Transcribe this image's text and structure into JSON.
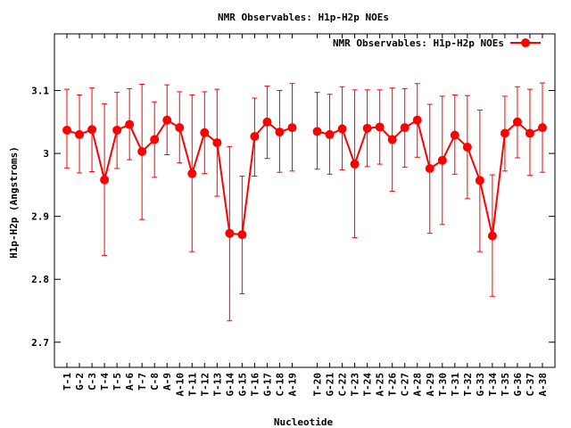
{
  "chart_data": {
    "type": "line",
    "title": "NMR Observables: H1p-H2p NOEs",
    "xlabel": "Nucleotide",
    "ylabel": "H1p-H2p (Angstroms)",
    "ylim": [
      2.66,
      3.19
    ],
    "yticks": [
      2.7,
      2.8,
      2.9,
      3,
      3.1
    ],
    "ytick_labels": [
      "2.7",
      "2.8",
      "2.9",
      "3",
      "3.1"
    ],
    "grid": false,
    "legend_position": "top-right",
    "color": "#ff0000",
    "series": [
      {
        "name": "NMR Observables: H1p-H2p NOEs",
        "strands": [
          {
            "categories": [
              "T-1",
              "G-2",
              "C-3",
              "T-4",
              "T-5",
              "A-6",
              "T-7",
              "C-8",
              "A-9",
              "A-10",
              "T-11",
              "T-12",
              "T-13",
              "G-14",
              "G-15",
              "T-16",
              "G-17",
              "C-18",
              "A-19"
            ],
            "values": [
              3.037,
              3.03,
              3.038,
              2.958,
              3.037,
              3.046,
              3.003,
              3.022,
              3.053,
              3.041,
              2.968,
              3.033,
              3.017,
              2.873,
              2.871,
              3.027,
              3.05,
              3.034,
              3.041
            ],
            "err_low": [
              2.977,
              2.969,
              2.971,
              2.838,
              2.976,
              2.99,
              2.895,
              2.962,
              2.998,
              2.985,
              2.844,
              2.968,
              2.932,
              2.734,
              2.777,
              2.964,
              2.992,
              2.97,
              2.972
            ],
            "err_high": [
              3.102,
              3.093,
              3.104,
              3.079,
              3.097,
              3.103,
              3.11,
              3.082,
              3.109,
              3.098,
              3.093,
              3.098,
              3.102,
              3.011,
              2.964,
              3.088,
              3.107,
              3.1,
              3.111
            ]
          },
          {
            "categories": [
              "T-20",
              "G-21",
              "C-22",
              "T-23",
              "T-24",
              "A-25",
              "T-26",
              "C-27",
              "A-28",
              "A-29",
              "T-30",
              "T-31",
              "T-32",
              "G-33",
              "T-34",
              "T-35",
              "G-36",
              "C-37",
              "A-38"
            ],
            "values": [
              3.035,
              3.03,
              3.039,
              2.983,
              3.04,
              3.042,
              3.022,
              3.041,
              3.053,
              2.976,
              2.989,
              3.029,
              3.01,
              2.957,
              2.869,
              3.032,
              3.05,
              3.032,
              3.041
            ],
            "err_low": [
              2.975,
              2.967,
              2.974,
              2.866,
              2.979,
              2.983,
              2.94,
              2.978,
              2.994,
              2.873,
              2.887,
              2.967,
              2.928,
              2.844,
              2.773,
              2.972,
              2.993,
              2.965,
              2.97
            ],
            "err_high": [
              3.097,
              3.094,
              3.106,
              3.101,
              3.101,
              3.101,
              3.104,
              3.103,
              3.111,
              3.078,
              3.091,
              3.093,
              3.092,
              3.069,
              2.966,
              3.091,
              3.106,
              3.102,
              3.112
            ]
          }
        ]
      }
    ]
  }
}
